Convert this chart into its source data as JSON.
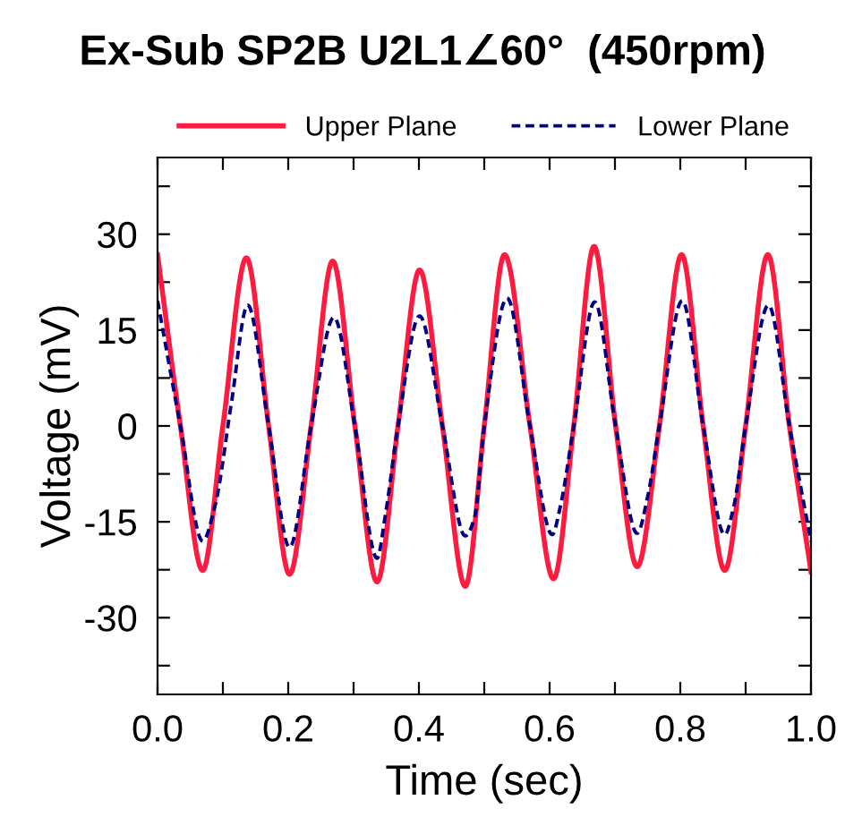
{
  "chart_data": {
    "type": "line",
    "title": "Ex-Sub SP2B U2L1∠60°  (450rpm)",
    "xlabel": "Time (sec)",
    "ylabel": "Voltage (mV)",
    "xlim": [
      0,
      1
    ],
    "ylim": [
      -42,
      42
    ],
    "xticks": [
      {
        "value": 0,
        "label": "0.0"
      },
      {
        "value": 0.1,
        "label": null
      },
      {
        "value": 0.2,
        "label": "0.2"
      },
      {
        "value": 0.3,
        "label": null
      },
      {
        "value": 0.4,
        "label": "0.4"
      },
      {
        "value": 0.5,
        "label": null
      },
      {
        "value": 0.6,
        "label": "0.6"
      },
      {
        "value": 0.7,
        "label": null
      },
      {
        "value": 0.8,
        "label": "0.8"
      },
      {
        "value": 0.9,
        "label": null
      },
      {
        "value": 1,
        "label": "1.0"
      }
    ],
    "yticks": [
      {
        "value": -37.5,
        "label": null
      },
      -30,
      {
        "value": -22.5,
        "label": null
      },
      -15,
      {
        "value": -7.5,
        "label": null
      },
      0,
      {
        "value": 7.5,
        "label": null
      },
      15,
      {
        "value": 22.5,
        "label": null
      },
      30,
      {
        "value": 37.5,
        "label": null
      }
    ],
    "grid": false,
    "legend": "top",
    "series": [
      {
        "name": "Upper Plane",
        "color": "#ff1a40",
        "line_style": "solid",
        "x": [
          0,
          0.035,
          0.069,
          0.1,
          0.136,
          0.17,
          0.202,
          0.235,
          0.268,
          0.302,
          0.336,
          0.368,
          0.401,
          0.436,
          0.471,
          0.5,
          0.531,
          0.57,
          0.606,
          0.637,
          0.668,
          0.701,
          0.734,
          0.768,
          0.802,
          0.835,
          0.868,
          0.9,
          0.934,
          0.967,
          1.0
        ],
        "values": [
          26.8,
          0,
          -22.6,
          0,
          26.3,
          0,
          -23.2,
          0,
          25.8,
          0,
          -24.4,
          0,
          24.4,
          0,
          -25.1,
          0,
          26.8,
          0,
          -23.9,
          0,
          28.1,
          0,
          -22,
          0,
          26.8,
          0,
          -22.6,
          0,
          26.8,
          0,
          -22.8
        ]
      },
      {
        "name": "Lower Plane",
        "color": "#000080",
        "line_style": "dashed",
        "x": [
          0,
          0.035,
          0.069,
          0.088,
          0.113,
          0.138,
          0.17,
          0.202,
          0.235,
          0.27,
          0.302,
          0.336,
          0.348,
          0.368,
          0.401,
          0.436,
          0.471,
          0.485,
          0.5,
          0.535,
          0.57,
          0.604,
          0.616,
          0.637,
          0.669,
          0.701,
          0.734,
          0.75,
          0.768,
          0.803,
          0.835,
          0.868,
          0.882,
          0.9,
          0.935,
          0.967,
          1.0
        ],
        "values": [
          19.6,
          0,
          -18,
          -12.5,
          3.6,
          18.9,
          0,
          -19,
          0,
          17,
          0,
          -20.7,
          -14.4,
          0,
          17.2,
          0,
          -17.2,
          -14.4,
          0,
          20,
          0,
          -17,
          -12.8,
          0,
          19.4,
          0,
          -16.8,
          -11.1,
          0,
          19.6,
          0,
          -17,
          -12.5,
          0,
          18.9,
          0,
          -18.1
        ]
      }
    ]
  }
}
